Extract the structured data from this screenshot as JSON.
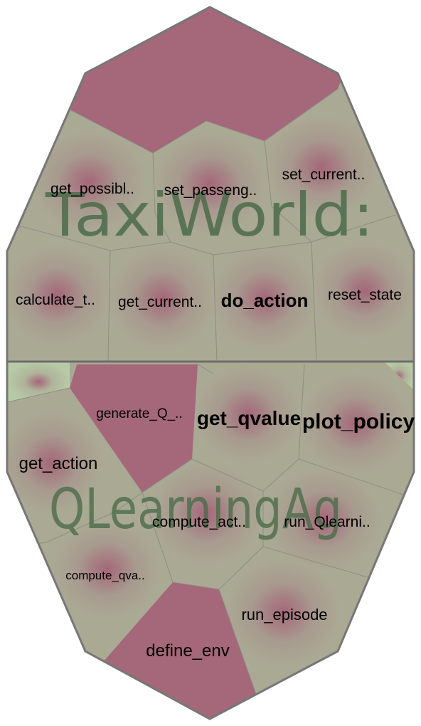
{
  "classes": [
    {
      "title": "TaxiWorld:",
      "methods": [
        {
          "label": "get_possibl..",
          "style": "normal"
        },
        {
          "label": "set_passeng..",
          "style": "normal"
        },
        {
          "label": "set_current..",
          "style": "normal"
        },
        {
          "label": "calculate_t..",
          "style": "normal"
        },
        {
          "label": "get_current..",
          "style": "normal"
        },
        {
          "label": "do_action",
          "style": "bold"
        },
        {
          "label": "reset_state",
          "style": "normal"
        }
      ]
    },
    {
      "title": "QLearningAg",
      "methods": [
        {
          "label": "generate_Q_..",
          "style": "normal"
        },
        {
          "label": "get_qvalue",
          "style": "bold"
        },
        {
          "label": "plot_policy",
          "style": "bold"
        },
        {
          "label": "get_action",
          "style": "normal"
        },
        {
          "label": "compute_act..",
          "style": "normal"
        },
        {
          "label": "run_Qlearni..",
          "style": "normal"
        },
        {
          "label": "compute_qva..",
          "style": "normal"
        },
        {
          "label": "run_episode",
          "style": "normal"
        },
        {
          "label": "define_env",
          "style": "normal"
        }
      ]
    }
  ],
  "colors": {
    "cell_fill": "#aaa994",
    "cell_center": "#a46779",
    "highlight_fill": "#a5677a",
    "edge_stroke": "#8e8e84",
    "outline_stroke": "#777777",
    "title_fill": "#4b6b49",
    "green_cell": "#b7caa6"
  }
}
